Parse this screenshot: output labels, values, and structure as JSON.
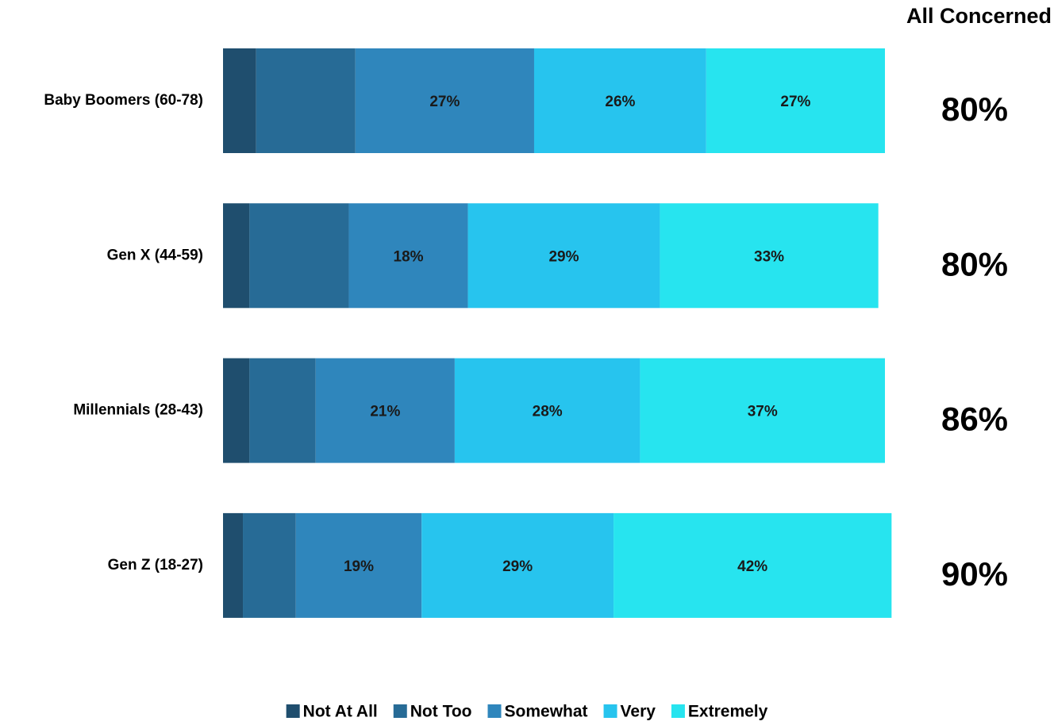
{
  "chart_data": {
    "type": "stacked-barh",
    "categories": [
      "Baby Boomers (60-78)",
      "Gen X (44-59)",
      "Millennials (28-43)",
      "Gen Z (18-27)"
    ],
    "series": [
      {
        "name": "Not At All",
        "color": "#1f4e6e",
        "values": [
          5,
          4,
          4,
          3
        ]
      },
      {
        "name": "Not Too",
        "color": "#276b96",
        "values": [
          15,
          15,
          10,
          8
        ]
      },
      {
        "name": "Somewhat",
        "color": "#2f86bc",
        "values": [
          27,
          18,
          21,
          19
        ],
        "value_labels": [
          "27%",
          "18%",
          "21%",
          "19%"
        ]
      },
      {
        "name": "Very",
        "color": "#27c4ee",
        "values": [
          26,
          29,
          28,
          29
        ],
        "value_labels": [
          "26%",
          "29%",
          "28%",
          "29%"
        ]
      },
      {
        "name": "Extremely",
        "color": "#27e4ef",
        "values": [
          27,
          33,
          37,
          42
        ],
        "value_labels": [
          "27%",
          "33%",
          "37%",
          "42%"
        ]
      }
    ],
    "xlim": [
      0,
      100
    ],
    "all_concerned": {
      "title": "All Concerned",
      "values": [
        80,
        80,
        86,
        90
      ],
      "value_labels": [
        "80%",
        "80%",
        "86%",
        "90%"
      ]
    },
    "legend": "bottom"
  }
}
